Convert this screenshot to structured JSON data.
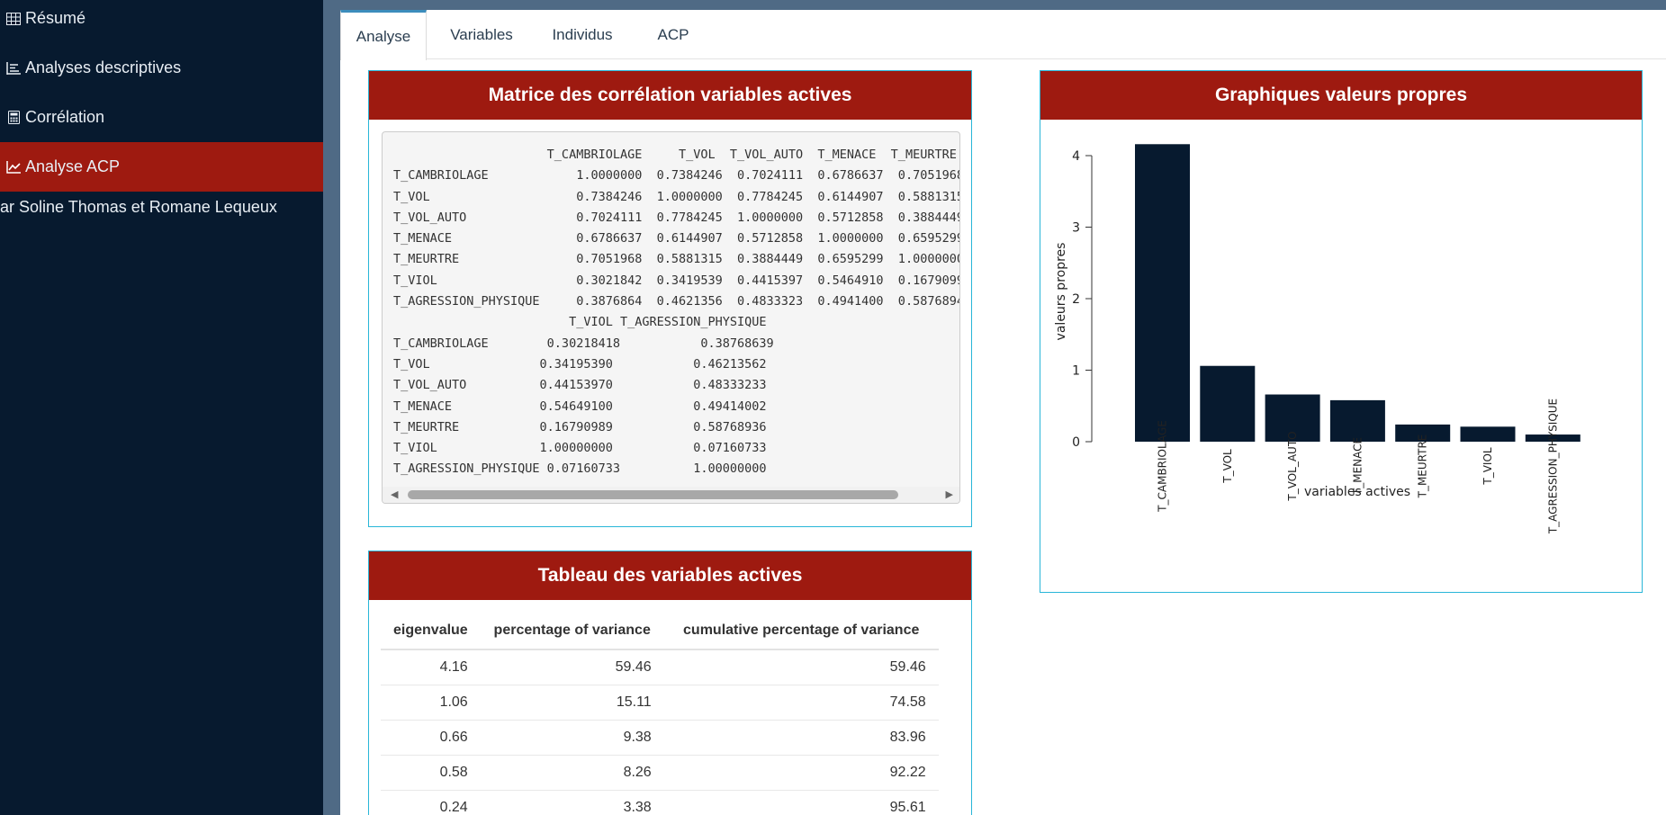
{
  "sidebar": {
    "items": [
      {
        "label": "Résumé",
        "icon": "table-icon"
      },
      {
        "label": "Analyses descriptives",
        "icon": "list-icon"
      },
      {
        "label": "Corrélation",
        "icon": "calculator-icon"
      },
      {
        "label": "Analyse ACP",
        "icon": "line-chart-icon",
        "active": true
      }
    ],
    "author": "ar Soline Thomas et Romane Lequeux"
  },
  "tabs": [
    {
      "label": "Analyse",
      "active": true
    },
    {
      "label": "Variables"
    },
    {
      "label": "Individus"
    },
    {
      "label": "ACP"
    }
  ],
  "matrix_box": {
    "title": "Matrice des corrélation variables actives",
    "lines": [
      "                     T_CAMBRIOLAGE     T_VOL  T_VOL_AUTO  T_MENACE  T_MEURTRE",
      "T_CAMBRIOLAGE            1.0000000  0.7384246  0.7024111  0.6786637  0.7051968",
      "T_VOL                    0.7384246  1.0000000  0.7784245  0.6144907  0.5881315",
      "T_VOL_AUTO               0.7024111  0.7784245  1.0000000  0.5712858  0.3884449",
      "T_MENACE                 0.6786637  0.6144907  0.5712858  1.0000000  0.6595299",
      "T_MEURTRE                0.7051968  0.5881315  0.3884449  0.6595299  1.0000000",
      "T_VIOL                   0.3021842  0.3419539  0.4415397  0.5464910  0.1679099",
      "T_AGRESSION_PHYSIQUE     0.3876864  0.4621356  0.4833323  0.4941400  0.5876894",
      "                        T_VIOL T_AGRESSION_PHYSIQUE",
      "T_CAMBRIOLAGE        0.30218418           0.38768639",
      "T_VOL               0.34195390           0.46213562",
      "T_VOL_AUTO          0.44153970           0.48333233",
      "T_MENACE            0.54649100           0.49414002",
      "T_MEURTRE           0.16790989           0.58768936",
      "T_VIOL              1.00000000           0.07160733",
      "T_AGRESSION_PHYSIQUE 0.07160733          1.00000000"
    ]
  },
  "table_box": {
    "title": "Tableau des variables actives",
    "columns": [
      "eigenvalue",
      "percentage of variance",
      "cumulative percentage of variance"
    ],
    "rows": [
      [
        "4.16",
        "59.46",
        "59.46"
      ],
      [
        "1.06",
        "15.11",
        "74.58"
      ],
      [
        "0.66",
        "9.38",
        "83.96"
      ],
      [
        "0.58",
        "8.26",
        "92.22"
      ],
      [
        "0.24",
        "3.38",
        "95.61"
      ]
    ]
  },
  "chart_box": {
    "title": "Graphiques valeurs propres"
  },
  "chart_data": {
    "type": "bar",
    "categories": [
      "T_CAMBRIOLAGE",
      "T_VOL",
      "T_VOL_AUTO",
      "T_MENACE",
      "T_MEURTRE",
      "T_VIOL",
      "T_AGRESSION_PHYSIQUE"
    ],
    "values": [
      4.16,
      1.06,
      0.66,
      0.58,
      0.24,
      0.21,
      0.1
    ],
    "xlabel": "variables actives",
    "ylabel": "valeurs propres",
    "ylim": [
      0,
      4.2
    ],
    "yticks": [
      "0",
      "1",
      "2",
      "3",
      "4"
    ],
    "bar_color": "#071a2f"
  },
  "colors": {
    "sidebar_bg": "#071a2f",
    "accent_red": "#9e1a10",
    "box_border": "#29b6d8",
    "page_bg": "#4f6a85"
  }
}
